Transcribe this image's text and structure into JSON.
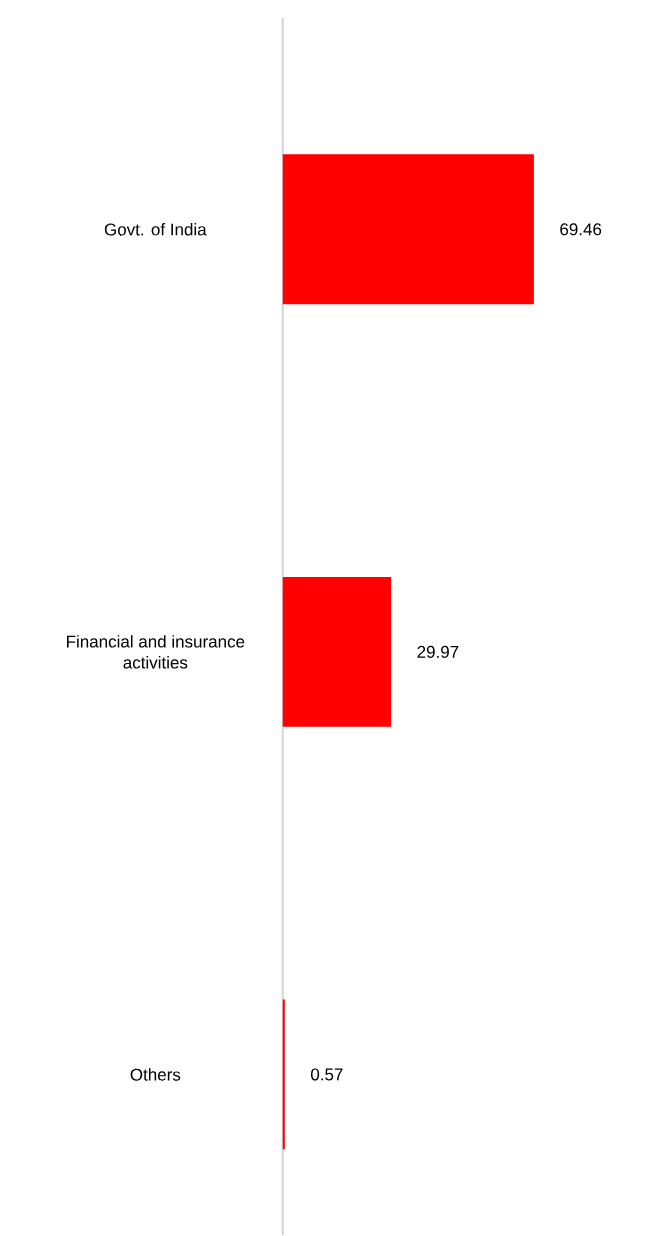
{
  "chart_data": {
    "type": "bar",
    "orientation": "horizontal",
    "categories": [
      "Govt. of India",
      "Financial and insurance activities",
      "Others"
    ],
    "values": [
      69.46,
      29.97,
      0.57
    ],
    "color": "#ff0000",
    "data_labels": true
  }
}
